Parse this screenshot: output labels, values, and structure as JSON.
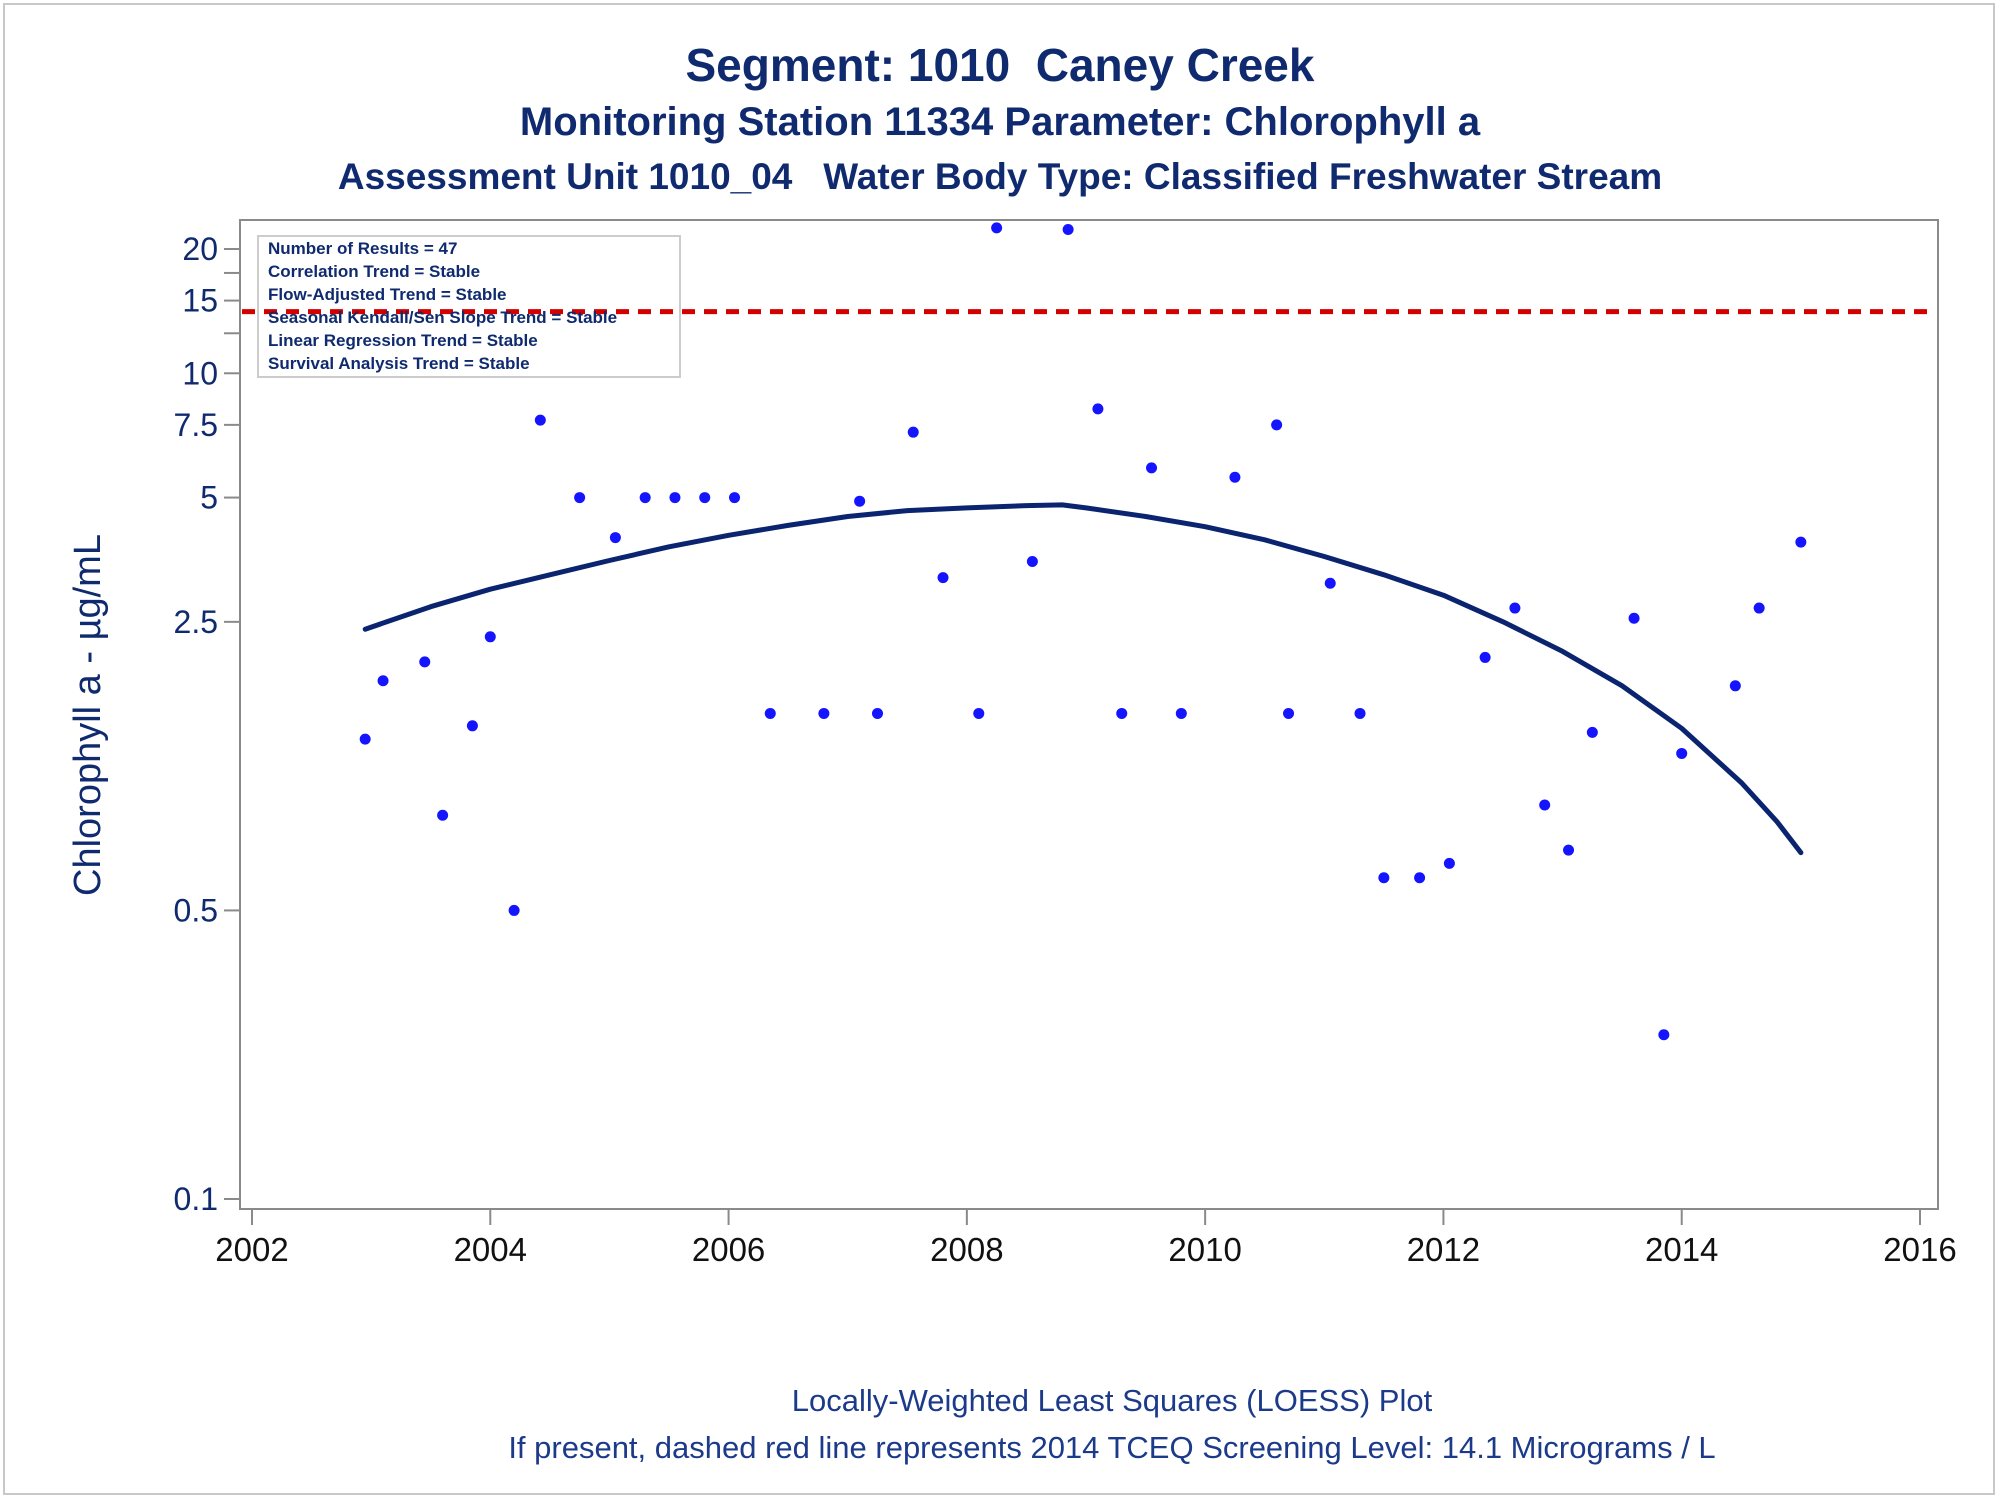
{
  "header": {
    "title": "Segment: 1010  Caney Creek",
    "subtitle1": "Monitoring Station 11334 Parameter: Chlorophyll a",
    "subtitle2": "Assessment Unit 1010_04   Water Body Type: Classified Freshwater Stream"
  },
  "footer": {
    "line1": "Locally-Weighted Least Squares (LOESS) Plot",
    "line2": "If present, dashed red line represents 2014 TCEQ Screening Level: 14.1 Micrograms / L"
  },
  "colors": {
    "text": "#0f2a6e",
    "points": "#1414ff",
    "loess": "#0b2470",
    "screening_line": "#d40000",
    "axis": "#8a8a8a"
  },
  "chart_data": {
    "type": "scatter",
    "title": "Segment: 1010  Caney Creek",
    "ylabel": "Chlorophyll a -  µg/mL",
    "xlabel": "",
    "y_scale": "log",
    "xlim": [
      2002,
      2016
    ],
    "ylim": [
      0.1,
      20
    ],
    "grid": false,
    "x_ticks": [
      2002,
      2004,
      2006,
      2008,
      2010,
      2012,
      2014,
      2016
    ],
    "x_tick_labels": [
      "2002",
      "2004",
      "2006",
      "2008",
      "2010",
      "2012",
      "2014",
      "2016"
    ],
    "y_ticks": [
      0.1,
      0.5,
      2.5,
      5,
      7.5,
      10,
      15,
      20
    ],
    "y_tick_labels": [
      "0.1",
      "0.5",
      "2.5",
      "5",
      "7.5",
      "10",
      "15",
      "20"
    ],
    "y_minor_ticks": [
      12.5,
      17.5
    ],
    "screening_level": 14.1,
    "stats_box": [
      "Number of Results = 47",
      "Correlation Trend = Stable",
      "Flow-Adjusted Trend = Stable",
      "Seasonal Kendall/Sen Slope Trend = Stable",
      "Linear Regression Trend = Stable",
      "Survival Analysis Trend = Stable"
    ],
    "points": [
      [
        2002.95,
        1.3
      ],
      [
        2003.1,
        1.8
      ],
      [
        2003.45,
        2.0
      ],
      [
        2003.6,
        0.85
      ],
      [
        2003.85,
        1.4
      ],
      [
        2004.0,
        2.3
      ],
      [
        2004.2,
        0.5
      ],
      [
        2004.42,
        7.7
      ],
      [
        2004.75,
        5.0
      ],
      [
        2005.05,
        4.0
      ],
      [
        2005.3,
        5.0
      ],
      [
        2005.55,
        5.0
      ],
      [
        2005.8,
        5.0
      ],
      [
        2006.05,
        5.0
      ],
      [
        2006.35,
        1.5
      ],
      [
        2006.8,
        1.5
      ],
      [
        2007.1,
        4.9
      ],
      [
        2007.25,
        1.5
      ],
      [
        2007.55,
        7.2
      ],
      [
        2007.8,
        3.2
      ],
      [
        2008.1,
        1.5
      ],
      [
        2008.25,
        22.5
      ],
      [
        2008.55,
        3.5
      ],
      [
        2008.85,
        22.3
      ],
      [
        2009.1,
        8.2
      ],
      [
        2009.3,
        1.5
      ],
      [
        2009.55,
        5.9
      ],
      [
        2009.8,
        1.5
      ],
      [
        2010.25,
        5.6
      ],
      [
        2010.6,
        7.5
      ],
      [
        2010.7,
        1.5
      ],
      [
        2011.05,
        3.1
      ],
      [
        2011.3,
        1.5
      ],
      [
        2011.5,
        0.6
      ],
      [
        2011.8,
        0.6
      ],
      [
        2012.05,
        0.65
      ],
      [
        2012.35,
        2.05
      ],
      [
        2012.6,
        2.7
      ],
      [
        2012.85,
        0.9
      ],
      [
        2013.05,
        0.7
      ],
      [
        2013.25,
        1.35
      ],
      [
        2013.6,
        2.55
      ],
      [
        2013.85,
        0.25
      ],
      [
        2014.0,
        1.2
      ],
      [
        2014.45,
        1.75
      ],
      [
        2014.65,
        2.7
      ],
      [
        2015.0,
        3.9
      ]
    ],
    "loess": [
      [
        2002.95,
        2.4
      ],
      [
        2003.5,
        2.72
      ],
      [
        2004.0,
        3.0
      ],
      [
        2004.5,
        3.25
      ],
      [
        2005.0,
        3.52
      ],
      [
        2005.5,
        3.8
      ],
      [
        2006.0,
        4.05
      ],
      [
        2006.5,
        4.28
      ],
      [
        2007.0,
        4.5
      ],
      [
        2007.5,
        4.65
      ],
      [
        2008.0,
        4.72
      ],
      [
        2008.5,
        4.78
      ],
      [
        2008.8,
        4.8
      ],
      [
        2009.0,
        4.72
      ],
      [
        2009.5,
        4.5
      ],
      [
        2010.0,
        4.25
      ],
      [
        2010.5,
        3.95
      ],
      [
        2011.0,
        3.6
      ],
      [
        2011.5,
        3.25
      ],
      [
        2012.0,
        2.9
      ],
      [
        2012.5,
        2.5
      ],
      [
        2013.0,
        2.12
      ],
      [
        2013.5,
        1.75
      ],
      [
        2014.0,
        1.38
      ],
      [
        2014.5,
        1.02
      ],
      [
        2014.8,
        0.82
      ],
      [
        2015.0,
        0.69
      ]
    ]
  }
}
